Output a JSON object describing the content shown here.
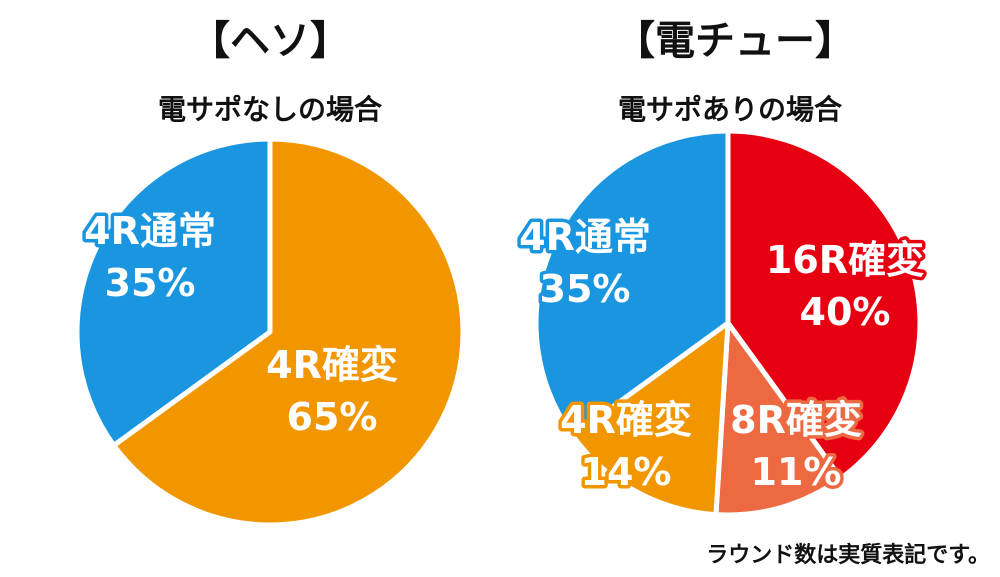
{
  "charts": {
    "left": {
      "title": "【ヘソ】",
      "subtitle": "電サポなしの場合",
      "chart_data": {
        "type": "pie",
        "slices": [
          {
            "line1": "4R通常",
            "line2": "35%",
            "value": 35,
            "color": "#1a96e0"
          },
          {
            "line1": "4R確変",
            "line2": "65%",
            "value": 65,
            "color": "#f29600"
          }
        ]
      }
    },
    "right": {
      "title": "【電チュー】",
      "subtitle": "電サポありの場合",
      "chart_data": {
        "type": "pie",
        "slices": [
          {
            "line1": "16R確変",
            "line2": "40%",
            "value": 40,
            "color": "#e60012"
          },
          {
            "line1": "8R確変",
            "line2": "11%",
            "value": 11,
            "color": "#ec6941"
          },
          {
            "line1": "4R確変",
            "line2": "14%",
            "value": 14,
            "color": "#f29600"
          },
          {
            "line1": "4R通常",
            "line2": "35%",
            "value": 35,
            "color": "#1a96e0"
          }
        ]
      }
    }
  },
  "footnote": "ラウンド数は実質表記です。"
}
